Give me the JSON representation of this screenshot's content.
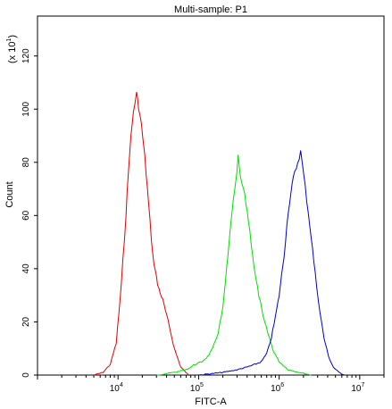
{
  "chart_data": {
    "type": "line",
    "title": "Multi-sample: P1",
    "xlabel": "FITC-A",
    "ylabel": "Count",
    "y_multiplier_label": "(x 10",
    "y_multiplier_exp": "1",
    "y_multiplier_close": ")",
    "x_scale": "log",
    "xlim": [
      1000,
      20000000
    ],
    "ylim": [
      0,
      135
    ],
    "x_ticks": [
      {
        "value": 10000,
        "base": "10",
        "exp": "4"
      },
      {
        "value": 100000,
        "base": "10",
        "exp": "5"
      },
      {
        "value": 1000000,
        "base": "10",
        "exp": "6"
      },
      {
        "value": 10000000,
        "base": "10",
        "exp": "7"
      }
    ],
    "y_ticks": [
      {
        "value": 0,
        "label": "0"
      },
      {
        "value": 20,
        "label": "20"
      },
      {
        "value": 40,
        "label": "40"
      },
      {
        "value": 60,
        "label": "60"
      },
      {
        "value": 80,
        "label": "80"
      },
      {
        "value": 100,
        "label": "100"
      },
      {
        "value": 120,
        "label": "120"
      }
    ],
    "grid": false,
    "legend": "none",
    "series": [
      {
        "color": "#e00000",
        "x": [
          5000,
          6500,
          8000,
          9500,
          11000,
          12500,
          14000,
          15500,
          17000,
          18000,
          19500,
          21500,
          24000,
          27000,
          31000,
          36000,
          42000,
          50000,
          60000,
          75000
        ],
        "y": [
          0,
          1,
          4,
          12,
          34,
          60,
          85,
          99,
          106,
          101,
          94,
          82,
          64,
          45,
          34,
          28,
          20,
          10,
          3,
          0
        ]
      },
      {
        "color": "#00dd00",
        "x": [
          30000,
          50000,
          70000,
          90000,
          110000,
          130000,
          150000,
          175000,
          200000,
          230000,
          260000,
          290000,
          310000,
          330000,
          360000,
          400000,
          450000,
          500000,
          560000,
          630000,
          720000,
          850000,
          1000000,
          1300000,
          1800000,
          2500000
        ],
        "y": [
          0,
          1,
          2,
          4,
          5,
          7,
          10,
          16,
          25,
          44,
          62,
          72,
          82,
          74,
          70,
          62,
          50,
          38,
          30,
          22,
          16,
          9,
          5,
          2,
          1,
          0
        ]
      },
      {
        "color": "#0000cc",
        "x": [
          100000,
          200000,
          300000,
          400000,
          500000,
          600000,
          700000,
          800000,
          900000,
          1000000,
          1150000,
          1300000,
          1500000,
          1700000,
          1850000,
          2000000,
          2200000,
          2500000,
          2800000,
          3200000,
          3600000,
          4100000,
          4700000,
          5500000,
          6500000
        ],
        "y": [
          0,
          1,
          2,
          3,
          4,
          5,
          8,
          14,
          22,
          30,
          45,
          62,
          74,
          80,
          84,
          76,
          66,
          52,
          38,
          24,
          14,
          7,
          3,
          1,
          0
        ]
      }
    ]
  }
}
